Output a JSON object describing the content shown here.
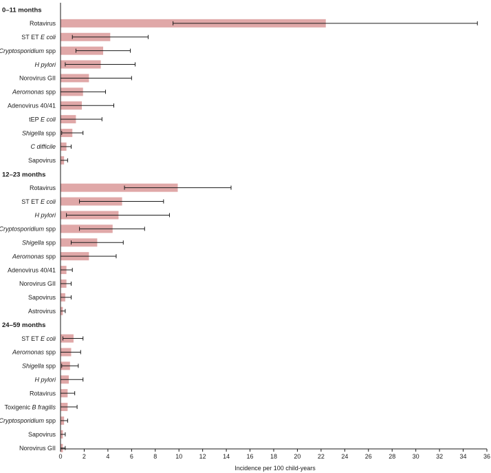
{
  "chart_data": {
    "type": "bar",
    "orientation": "horizontal",
    "xlabel": "Incidence per 100 child-years",
    "xlim": [
      0,
      36
    ],
    "xticks": [
      0,
      2,
      4,
      6,
      8,
      10,
      12,
      14,
      16,
      18,
      20,
      22,
      24,
      26,
      28,
      30,
      32,
      34,
      36
    ],
    "error_bars": true,
    "groups": [
      {
        "title": "0–11 months",
        "rows": [
          {
            "label": [
              {
                "t": "Rotavirus",
                "i": false
              }
            ],
            "value": 22.4,
            "lo": 9.5,
            "hi": 35.2
          },
          {
            "label": [
              {
                "t": "ST ET ",
                "i": false
              },
              {
                "t": "E coli",
                "i": true
              }
            ],
            "value": 4.2,
            "lo": 1.0,
            "hi": 7.4
          },
          {
            "label": [
              {
                "t": "Cryptosporidium",
                "i": true
              },
              {
                "t": " spp",
                "i": false
              }
            ],
            "value": 3.6,
            "lo": 1.3,
            "hi": 5.9
          },
          {
            "label": [
              {
                "t": "H pylori",
                "i": true
              }
            ],
            "value": 3.4,
            "lo": 0.4,
            "hi": 6.3
          },
          {
            "label": [
              {
                "t": "Norovirus GII",
                "i": false
              }
            ],
            "value": 2.4,
            "lo": 0.0,
            "hi": 6.0
          },
          {
            "label": [
              {
                "t": "Aeromonas",
                "i": true
              },
              {
                "t": " spp",
                "i": false
              }
            ],
            "value": 1.9,
            "lo": 0.0,
            "hi": 3.8
          },
          {
            "label": [
              {
                "t": "Adenovirus 40/41",
                "i": false
              }
            ],
            "value": 1.8,
            "lo": 0.0,
            "hi": 4.5
          },
          {
            "label": [
              {
                "t": "tEP ",
                "i": false
              },
              {
                "t": "E coli",
                "i": true
              }
            ],
            "value": 1.3,
            "lo": 0.0,
            "hi": 3.5
          },
          {
            "label": [
              {
                "t": "Shigella",
                "i": true
              },
              {
                "t": " spp",
                "i": false
              }
            ],
            "value": 1.0,
            "lo": 0.1,
            "hi": 1.9
          },
          {
            "label": [
              {
                "t": "C difficile",
                "i": true
              }
            ],
            "value": 0.5,
            "lo": 0.0,
            "hi": 0.9
          },
          {
            "label": [
              {
                "t": "Sapovirus",
                "i": false
              }
            ],
            "value": 0.3,
            "lo": 0.0,
            "hi": 0.6
          }
        ]
      },
      {
        "title": "12–23 months",
        "rows": [
          {
            "label": [
              {
                "t": "Rotavirus",
                "i": false
              }
            ],
            "value": 9.9,
            "lo": 5.4,
            "hi": 14.4
          },
          {
            "label": [
              {
                "t": "ST ET ",
                "i": false
              },
              {
                "t": "E coli",
                "i": true
              }
            ],
            "value": 5.2,
            "lo": 1.6,
            "hi": 8.7
          },
          {
            "label": [
              {
                "t": "H pylori",
                "i": true
              }
            ],
            "value": 4.9,
            "lo": 0.5,
            "hi": 9.2
          },
          {
            "label": [
              {
                "t": "Cryptosporidium",
                "i": true
              },
              {
                "t": " spp",
                "i": false
              }
            ],
            "value": 4.4,
            "lo": 1.6,
            "hi": 7.1
          },
          {
            "label": [
              {
                "t": "Shigella",
                "i": true
              },
              {
                "t": " spp",
                "i": false
              }
            ],
            "value": 3.1,
            "lo": 0.9,
            "hi": 5.3
          },
          {
            "label": [
              {
                "t": "Aeromonas",
                "i": true
              },
              {
                "t": " spp",
                "i": false
              }
            ],
            "value": 2.4,
            "lo": 0.0,
            "hi": 4.7
          },
          {
            "label": [
              {
                "t": "Adenovirus 40/41",
                "i": false
              }
            ],
            "value": 0.5,
            "lo": 0.0,
            "hi": 1.0
          },
          {
            "label": [
              {
                "t": "Norovirus GII",
                "i": false
              }
            ],
            "value": 0.5,
            "lo": 0.0,
            "hi": 0.9
          },
          {
            "label": [
              {
                "t": "Sapovirus",
                "i": false
              }
            ],
            "value": 0.4,
            "lo": 0.0,
            "hi": 0.9
          },
          {
            "label": [
              {
                "t": "Astrovirus",
                "i": false
              }
            ],
            "value": 0.2,
            "lo": 0.0,
            "hi": 0.4
          }
        ]
      },
      {
        "title": "24–59 months",
        "rows": [
          {
            "label": [
              {
                "t": "ST ET ",
                "i": false
              },
              {
                "t": "E coli",
                "i": true
              }
            ],
            "value": 1.1,
            "lo": 0.2,
            "hi": 1.9
          },
          {
            "label": [
              {
                "t": "Aeromonas",
                "i": true
              },
              {
                "t": " spp",
                "i": false
              }
            ],
            "value": 0.9,
            "lo": 0.0,
            "hi": 1.7
          },
          {
            "label": [
              {
                "t": "Shigella",
                "i": true
              },
              {
                "t": " spp",
                "i": false
              }
            ],
            "value": 0.8,
            "lo": 0.1,
            "hi": 1.5
          },
          {
            "label": [
              {
                "t": "H pylori",
                "i": true
              }
            ],
            "value": 0.7,
            "lo": 0.0,
            "hi": 1.9
          },
          {
            "label": [
              {
                "t": "Rotavirus",
                "i": false
              }
            ],
            "value": 0.6,
            "lo": 0.0,
            "hi": 1.2
          },
          {
            "label": [
              {
                "t": "Toxigenic ",
                "i": false
              },
              {
                "t": "B fragilis",
                "i": true
              }
            ],
            "value": 0.6,
            "lo": 0.0,
            "hi": 1.4
          },
          {
            "label": [
              {
                "t": "Cryptosporidium",
                "i": true
              },
              {
                "t": " spp",
                "i": false
              }
            ],
            "value": 0.3,
            "lo": 0.0,
            "hi": 0.6
          },
          {
            "label": [
              {
                "t": "Sapovirus",
                "i": false
              }
            ],
            "value": 0.2,
            "lo": 0.0,
            "hi": 0.4
          },
          {
            "label": [
              {
                "t": "Norovirus GII",
                "i": false
              }
            ],
            "value": 0.2,
            "lo": 0.0,
            "hi": 0.4
          }
        ]
      }
    ],
    "colors": {
      "bar": "#e0a8a8",
      "error_bar": "#1a1a1a",
      "axis": "#1a1a1a"
    }
  }
}
